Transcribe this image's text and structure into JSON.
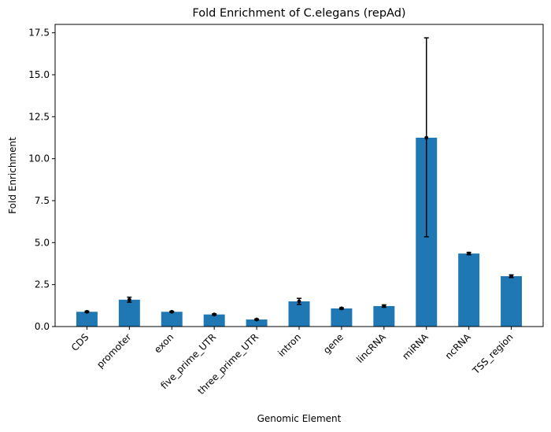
{
  "chart_data": {
    "type": "bar",
    "title": "Fold Enrichment of C.elegans (repAd)",
    "xlabel": "Genomic Element",
    "ylabel": "Fold Enrichment",
    "categories": [
      "CDS",
      "promoter",
      "exon",
      "five_prime_UTR",
      "three_prime_UTR",
      "intron",
      "gene",
      "lincRNA",
      "miRNA",
      "ncRNA",
      "TSS_region"
    ],
    "values": [
      0.88,
      1.6,
      0.88,
      0.72,
      0.42,
      1.5,
      1.08,
      1.22,
      11.25,
      4.35,
      3.0
    ],
    "error_low": [
      0.84,
      1.45,
      0.85,
      0.68,
      0.39,
      1.32,
      1.04,
      1.15,
      5.35,
      4.28,
      2.92
    ],
    "error_high": [
      0.92,
      1.75,
      0.91,
      0.76,
      0.45,
      1.68,
      1.12,
      1.29,
      17.2,
      4.42,
      3.08
    ],
    "ylim": [
      0,
      18.0
    ],
    "yticks": [
      "0.0",
      "2.5",
      "5.0",
      "7.5",
      "10.0",
      "12.5",
      "15.0",
      "17.5"
    ],
    "grid": false,
    "bar_color": "#1f77b4",
    "error_color": "#000000"
  }
}
